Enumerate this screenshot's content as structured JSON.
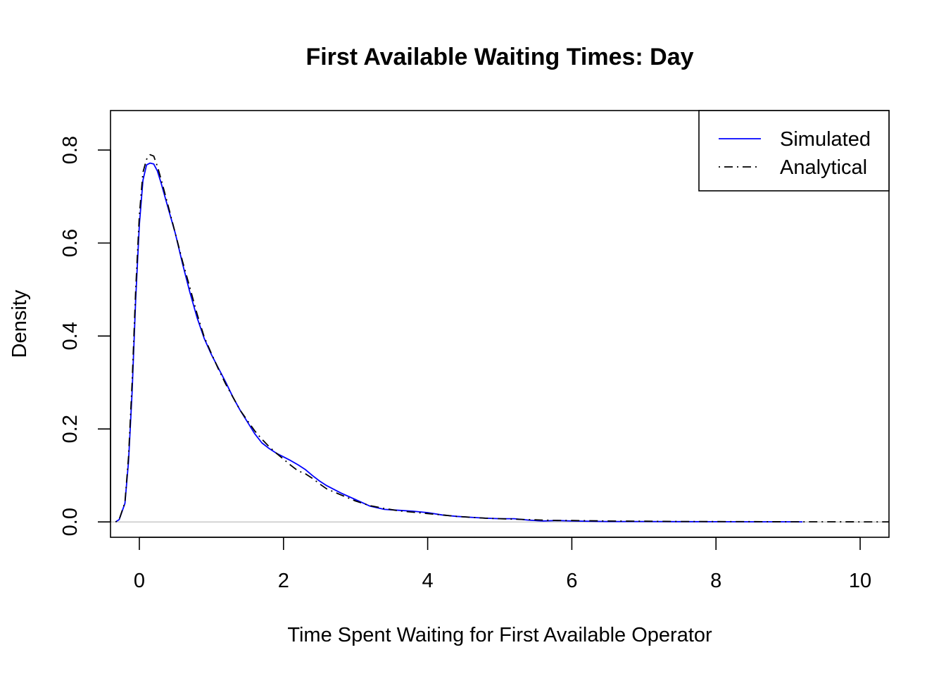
{
  "chart_data": {
    "type": "line",
    "title": "First Available Waiting Times: Day",
    "xlabel": "Time Spent Waiting for First Available Operator",
    "ylabel": "Density",
    "xlim": [
      -0.4,
      10.4
    ],
    "ylim": [
      -0.033,
      0.885
    ],
    "x_ticks": [
      0,
      2,
      4,
      6,
      8,
      10
    ],
    "x_tick_labels": [
      "0",
      "2",
      "4",
      "6",
      "8",
      "10"
    ],
    "y_ticks": [
      0.0,
      0.2,
      0.4,
      0.6,
      0.8
    ],
    "y_tick_labels": [
      "0.0",
      "0.2",
      "0.4",
      "0.6",
      "0.8"
    ],
    "grid": false,
    "baseline": 0,
    "legend_position": "top-right",
    "series": [
      {
        "name": "Simulated",
        "color": "#0000ff",
        "style": "solid",
        "x": [
          -0.33,
          -0.28,
          -0.2,
          -0.15,
          -0.1,
          -0.05,
          0.0,
          0.05,
          0.1,
          0.15,
          0.2,
          0.25,
          0.3,
          0.4,
          0.5,
          0.6,
          0.7,
          0.8,
          0.9,
          1.0,
          1.1,
          1.2,
          1.3,
          1.4,
          1.5,
          1.6,
          1.7,
          1.8,
          1.9,
          2.0,
          2.1,
          2.2,
          2.3,
          2.4,
          2.5,
          2.6,
          2.8,
          3.0,
          3.2,
          3.4,
          3.6,
          3.8,
          4.0,
          4.2,
          4.4,
          4.6,
          4.8,
          5.0,
          5.2,
          5.4,
          5.6,
          5.8,
          6.0,
          6.5,
          7.0,
          7.5,
          8.0,
          8.5,
          9.0,
          9.2
        ],
        "y": [
          0.0,
          0.005,
          0.04,
          0.13,
          0.28,
          0.48,
          0.64,
          0.735,
          0.768,
          0.772,
          0.77,
          0.755,
          0.73,
          0.675,
          0.62,
          0.555,
          0.495,
          0.44,
          0.395,
          0.36,
          0.33,
          0.3,
          0.268,
          0.24,
          0.215,
          0.19,
          0.17,
          0.158,
          0.148,
          0.14,
          0.132,
          0.123,
          0.113,
          0.1,
          0.088,
          0.078,
          0.062,
          0.048,
          0.034,
          0.027,
          0.025,
          0.023,
          0.02,
          0.015,
          0.012,
          0.01,
          0.008,
          0.007,
          0.007,
          0.004,
          0.002,
          0.003,
          0.002,
          0.001,
          0.001,
          0.0007,
          0.0005,
          0.0004,
          0.0003,
          0.0002
        ]
      },
      {
        "name": "Analytical",
        "color": "#000000",
        "style": "dotdash",
        "x": [
          -0.33,
          -0.28,
          -0.2,
          -0.15,
          -0.1,
          -0.05,
          0.0,
          0.05,
          0.1,
          0.15,
          0.2,
          0.25,
          0.3,
          0.4,
          0.5,
          0.6,
          0.7,
          0.8,
          0.9,
          1.0,
          1.1,
          1.2,
          1.3,
          1.4,
          1.5,
          1.6,
          1.7,
          1.8,
          1.9,
          2.0,
          2.1,
          2.2,
          2.3,
          2.4,
          2.5,
          2.6,
          2.8,
          3.0,
          3.2,
          3.4,
          3.6,
          3.8,
          4.0,
          4.2,
          4.4,
          4.6,
          4.8,
          5.0,
          5.2,
          5.4,
          5.6,
          5.8,
          6.0,
          6.5,
          7.0,
          7.5,
          8.0,
          8.5,
          9.0,
          9.5,
          10.0,
          10.4
        ],
        "y": [
          0.0,
          0.005,
          0.042,
          0.14,
          0.3,
          0.5,
          0.66,
          0.752,
          0.78,
          0.79,
          0.787,
          0.765,
          0.738,
          0.68,
          0.62,
          0.56,
          0.505,
          0.448,
          0.398,
          0.362,
          0.328,
          0.296,
          0.268,
          0.24,
          0.218,
          0.196,
          0.178,
          0.162,
          0.148,
          0.135,
          0.122,
          0.11,
          0.104,
          0.094,
          0.082,
          0.071,
          0.058,
          0.045,
          0.035,
          0.029,
          0.024,
          0.021,
          0.018,
          0.015,
          0.012,
          0.01,
          0.008,
          0.007,
          0.006,
          0.005,
          0.004,
          0.003,
          0.003,
          0.002,
          0.0015,
          0.001,
          0.0008,
          0.0006,
          0.0004,
          0.0003,
          0.0002,
          0.0001
        ]
      }
    ]
  }
}
